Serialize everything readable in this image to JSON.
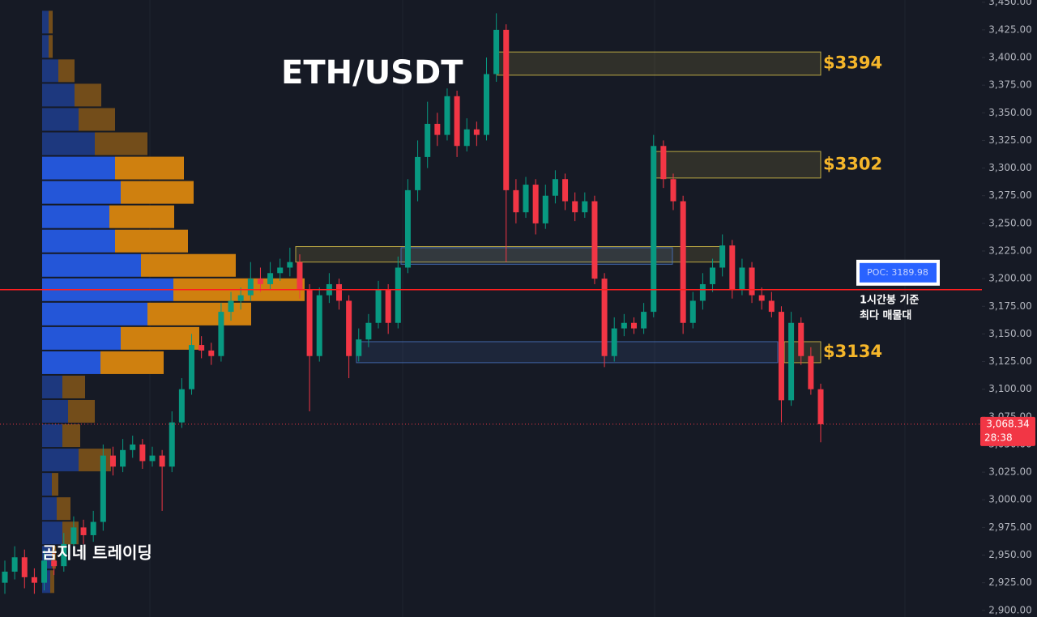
{
  "chart_data": {
    "type": "candlestick",
    "title": "ETH/USDT",
    "watermark": "곰지네 트레이딩",
    "ylim": [
      2894,
      3452
    ],
    "yticks": [
      {
        "value": 3450,
        "label": "3,450.00"
      },
      {
        "value": 3425,
        "label": "3,425.00"
      },
      {
        "value": 3400,
        "label": "3,400.00"
      },
      {
        "value": 3375,
        "label": "3,375.00"
      },
      {
        "value": 3350,
        "label": "3,350.00"
      },
      {
        "value": 3325,
        "label": "3,325.00"
      },
      {
        "value": 3300,
        "label": "3,300.00"
      },
      {
        "value": 3275,
        "label": "3,275.00"
      },
      {
        "value": 3250,
        "label": "3,250.00"
      },
      {
        "value": 3225,
        "label": "3,225.00"
      },
      {
        "value": 3200,
        "label": "3,200.00"
      },
      {
        "value": 3175,
        "label": "3,175.00"
      },
      {
        "value": 3150,
        "label": "3,150.00"
      },
      {
        "value": 3125,
        "label": "3,125.00"
      },
      {
        "value": 3100,
        "label": "3,100.00"
      },
      {
        "value": 3075,
        "label": "3,075.00"
      },
      {
        "value": 3050,
        "label": "3,050.00"
      },
      {
        "value": 3025,
        "label": "3,025.00"
      },
      {
        "value": 3000,
        "label": "3,000.00"
      },
      {
        "value": 2975,
        "label": "2,975.00"
      },
      {
        "value": 2950,
        "label": "2,950.00"
      },
      {
        "value": 2925,
        "label": "2,925.00"
      },
      {
        "value": 2900,
        "label": "2,900.00"
      }
    ],
    "up_color": "#089981",
    "down_color": "#f23645",
    "open": [
      2925,
      2935,
      2948,
      2930,
      2925,
      2945,
      2940,
      2960,
      2975,
      2968,
      2980,
      3040,
      3030,
      3045,
      3050,
      3035,
      3040,
      3030,
      3070,
      3100,
      3140,
      3135,
      3130,
      3170,
      3180,
      3185,
      3200,
      3195,
      3205,
      3210,
      3215,
      3190,
      3130,
      3185,
      3195,
      3180,
      3130,
      3145,
      3160,
      3190,
      3160,
      3210,
      3280,
      3310,
      3340,
      3330,
      3365,
      3320,
      3335,
      3330,
      3385,
      3425,
      3280,
      3260,
      3285,
      3250,
      3275,
      3290,
      3270,
      3260,
      3270,
      3200,
      3130,
      3155,
      3160,
      3155,
      3170,
      3320,
      3290,
      3270,
      3160,
      3180,
      3195,
      3210,
      3230,
      3190,
      3210,
      3185,
      3180,
      3170,
      3090,
      3160,
      3130,
      3100
    ],
    "high": [
      2945,
      2958,
      2955,
      2938,
      2955,
      2952,
      2970,
      2985,
      2982,
      2990,
      3050,
      3048,
      3055,
      3058,
      3055,
      3048,
      3045,
      3080,
      3110,
      3150,
      3148,
      3142,
      3178,
      3188,
      3192,
      3215,
      3210,
      3215,
      3218,
      3228,
      3222,
      3195,
      3192,
      3205,
      3200,
      3185,
      3155,
      3168,
      3198,
      3195,
      3220,
      3290,
      3325,
      3360,
      3350,
      3372,
      3370,
      3345,
      3342,
      3400,
      3440,
      3430,
      3290,
      3292,
      3290,
      3285,
      3298,
      3295,
      3278,
      3278,
      3275,
      3205,
      3165,
      3168,
      3165,
      3178,
      3330,
      3325,
      3295,
      3275,
      3188,
      3205,
      3218,
      3240,
      3235,
      3218,
      3215,
      3192,
      3188,
      3175,
      3170,
      3165,
      3138,
      3105
    ],
    "low": [
      2915,
      2928,
      2920,
      2915,
      2918,
      2932,
      2935,
      2952,
      2960,
      2962,
      2972,
      3022,
      3025,
      3038,
      3028,
      3030,
      2990,
      3025,
      3065,
      3095,
      3128,
      3122,
      3125,
      3162,
      3172,
      3180,
      3188,
      3190,
      3198,
      3202,
      3182,
      3080,
      3125,
      3178,
      3172,
      3110,
      3125,
      3138,
      3155,
      3150,
      3155,
      3205,
      3270,
      3300,
      3320,
      3325,
      3310,
      3315,
      3320,
      3325,
      3378,
      3215,
      3250,
      3255,
      3240,
      3245,
      3268,
      3262,
      3252,
      3255,
      3195,
      3120,
      3125,
      3148,
      3150,
      3150,
      3165,
      3282,
      3262,
      3150,
      3155,
      3172,
      3188,
      3202,
      3182,
      3185,
      3178,
      3172,
      3165,
      3070,
      3085,
      3122,
      3095,
      3052
    ],
    "close": [
      2935,
      2948,
      2930,
      2925,
      2945,
      2940,
      2960,
      2975,
      2968,
      2980,
      3040,
      3030,
      3045,
      3050,
      3035,
      3040,
      3030,
      3070,
      3100,
      3140,
      3135,
      3130,
      3170,
      3180,
      3185,
      3200,
      3195,
      3205,
      3210,
      3215,
      3190,
      3130,
      3185,
      3195,
      3180,
      3130,
      3145,
      3160,
      3190,
      3160,
      3210,
      3280,
      3310,
      3340,
      3330,
      3365,
      3320,
      3335,
      3330,
      3385,
      3425,
      3280,
      3260,
      3285,
      3250,
      3275,
      3290,
      3270,
      3260,
      3270,
      3200,
      3130,
      3155,
      3160,
      3155,
      3170,
      3320,
      3290,
      3270,
      3160,
      3180,
      3195,
      3210,
      3230,
      3190,
      3210,
      3185,
      3180,
      3170,
      3090,
      3160,
      3130,
      3100,
      3068.34
    ],
    "volume_profile": {
      "price_levels": [
        3432,
        3410,
        3388,
        3366,
        3344,
        3322,
        3300,
        3278,
        3256,
        3234,
        3212,
        3190,
        3168,
        3146,
        3124,
        3102,
        3080,
        3058,
        3036,
        3014,
        2992,
        2970,
        2948,
        2926
      ],
      "buy": [
        8,
        8,
        20,
        40,
        45,
        65,
        90,
        97,
        83,
        90,
        122,
        162,
        130,
        97,
        72,
        25,
        32,
        25,
        45,
        12,
        18,
        25,
        12,
        10
      ],
      "sell": [
        5,
        5,
        20,
        33,
        45,
        65,
        85,
        90,
        80,
        90,
        117,
        162,
        128,
        97,
        78,
        28,
        33,
        22,
        40,
        8,
        17,
        20,
        5,
        5
      ],
      "buy_color": "#2456d8",
      "sell_color": "#cf800f"
    },
    "zones": [
      {
        "label": "$3394",
        "low": 3384,
        "high": 3405,
        "color": "#e0c84a"
      },
      {
        "label": "$3302",
        "low": 3291,
        "high": 3315,
        "color": "#e0c84a"
      },
      {
        "label": "$3134",
        "low": 3124,
        "high": 3143,
        "color": "#e0c84a"
      },
      {
        "low": 3215,
        "high": 3229,
        "color": "#e0c84a"
      },
      {
        "low": 3213,
        "high": 3228,
        "color": "#4a78c8"
      },
      {
        "low": 3124,
        "high": 3143,
        "color": "#4a78c8"
      }
    ],
    "poc": {
      "value": 3189.98,
      "label": "POC: 3189.98",
      "note": [
        "1시간봉 기준",
        "최다 매물대"
      ]
    },
    "last_price": {
      "value": 3068.34,
      "label": "3,068.34",
      "countdown": "28:38"
    }
  }
}
